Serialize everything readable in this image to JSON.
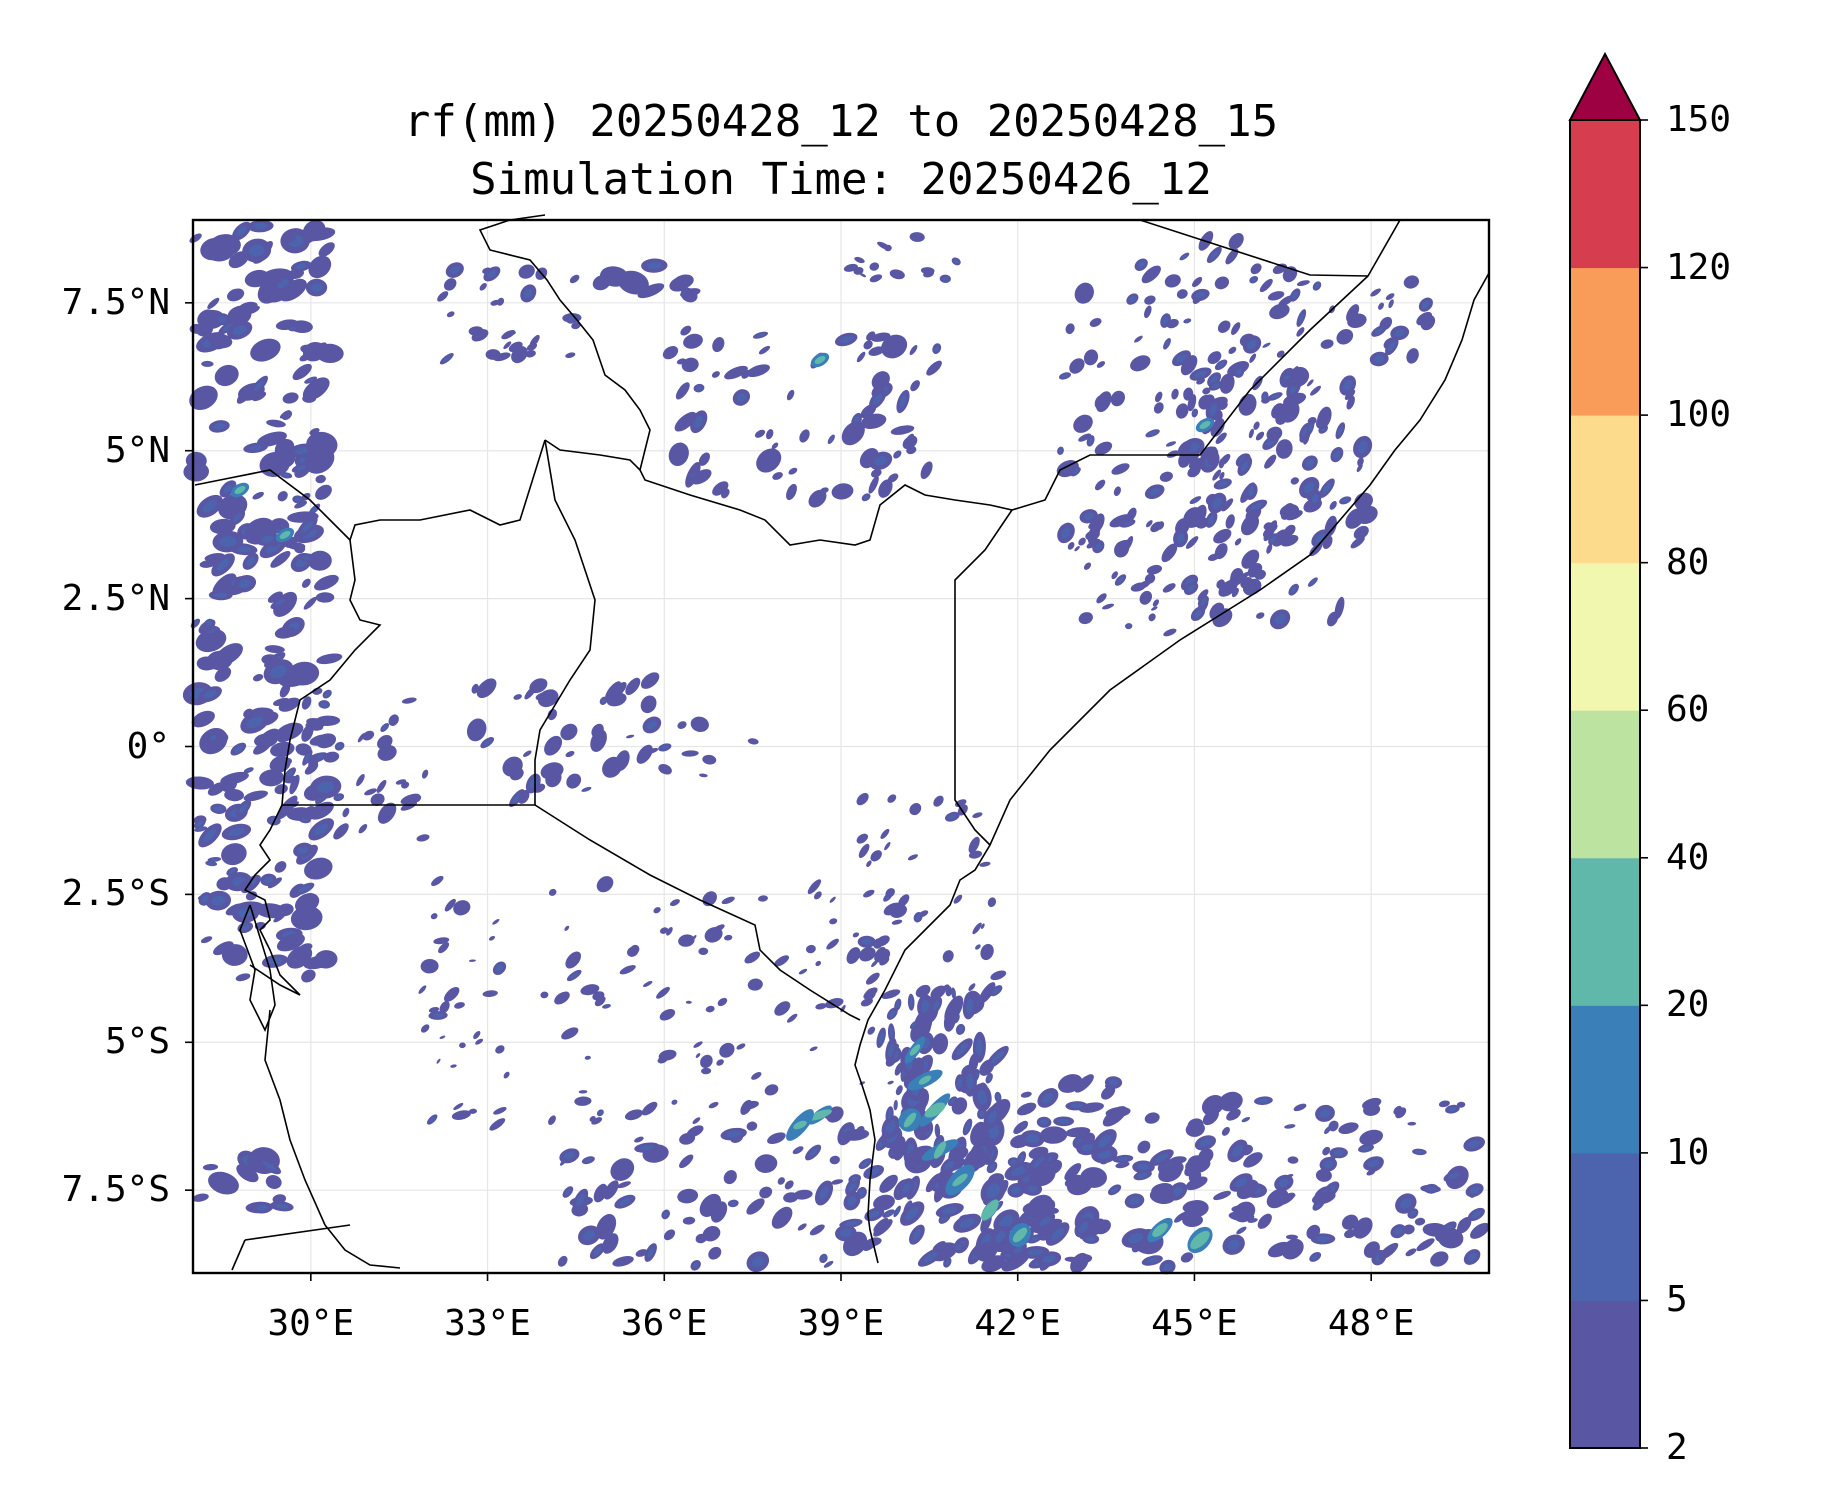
{
  "title_line1": "rf(mm) 20250428_12 to 20250428_15",
  "title_line2": "Simulation Time: 20250426_12",
  "map": {
    "lon_range": [
      28.0,
      50.0
    ],
    "lat_range": [
      -8.9,
      8.9
    ],
    "lon_ticks": [
      {
        "value": 30,
        "label": "30°E"
      },
      {
        "value": 33,
        "label": "33°E"
      },
      {
        "value": 36,
        "label": "36°E"
      },
      {
        "value": 39,
        "label": "39°E"
      },
      {
        "value": 42,
        "label": "42°E"
      },
      {
        "value": 45,
        "label": "45°E"
      },
      {
        "value": 48,
        "label": "48°E"
      }
    ],
    "lat_ticks": [
      {
        "value": 7.5,
        "label": "7.5°N"
      },
      {
        "value": 5,
        "label": "5°N"
      },
      {
        "value": 2.5,
        "label": "2.5°N"
      },
      {
        "value": 0,
        "label": "0°"
      },
      {
        "value": -2.5,
        "label": "2.5°S"
      },
      {
        "value": -5,
        "label": "5°S"
      },
      {
        "value": -7.5,
        "label": "7.5°S"
      }
    ],
    "gridlines": true,
    "region": "East Africa"
  },
  "colorbar": {
    "levels": [
      "2",
      "5",
      "10",
      "20",
      "40",
      "60",
      "80",
      "100",
      "120",
      "150"
    ],
    "colors": [
      "#5956a3",
      "#4c64ad",
      "#3a7fb8",
      "#5fb8a9",
      "#bde3a0",
      "#f2f7b0",
      "#fcdc8c",
      "#f99c5a",
      "#d63e50"
    ],
    "extend_color": "#9e0142",
    "extend": "max",
    "unit": "mm"
  }
}
